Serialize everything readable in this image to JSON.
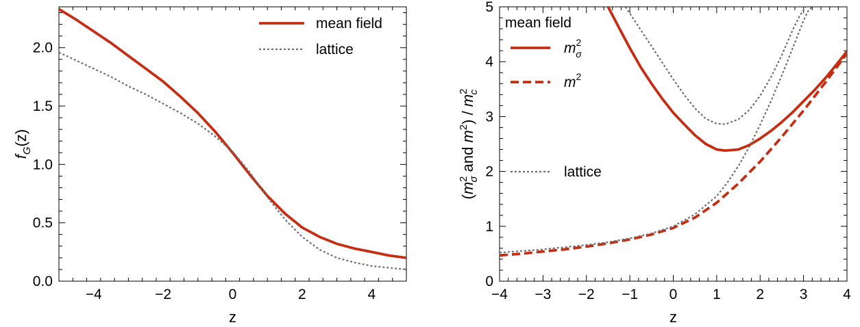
{
  "chart_data": [
    {
      "type": "line",
      "xlabel": "z",
      "ylabel": "f_G(z)",
      "xlim": [
        -5,
        5
      ],
      "ylim": [
        0,
        2.35
      ],
      "xticks": [
        -4,
        -2,
        0,
        2,
        4
      ],
      "xtick_labels": [
        "−4",
        "−2",
        "0",
        "2",
        "4"
      ],
      "yticks": [
        0.0,
        0.5,
        1.0,
        1.5,
        2.0
      ],
      "ytick_labels": [
        "0.0",
        "0.5",
        "1.0",
        "1.5",
        "2.0"
      ],
      "legend_position": "top-right",
      "legend": [
        {
          "label": "mean field",
          "style": "solid",
          "color": "#c62d12"
        },
        {
          "label": "lattice",
          "style": "dotted",
          "color": "#6e6e6e"
        }
      ],
      "series": [
        {
          "name": "mean field",
          "color": "#c62d12",
          "style": "solid",
          "x": [
            -5,
            -4.5,
            -4,
            -3.5,
            -3,
            -2.5,
            -2,
            -1.5,
            -1,
            -0.5,
            0,
            0.5,
            1,
            1.5,
            2,
            2.5,
            3,
            3.5,
            4,
            4.5,
            5
          ],
          "y": [
            2.33,
            2.24,
            2.14,
            2.04,
            1.93,
            1.82,
            1.71,
            1.58,
            1.44,
            1.28,
            1.1,
            0.91,
            0.73,
            0.58,
            0.46,
            0.38,
            0.32,
            0.28,
            0.25,
            0.22,
            0.2
          ]
        },
        {
          "name": "lattice",
          "color": "#6e6e6e",
          "style": "dotted",
          "x": [
            -5,
            -4.5,
            -4,
            -3.5,
            -3,
            -2.5,
            -2,
            -1.5,
            -1,
            -0.5,
            0,
            0.5,
            1,
            1.5,
            2,
            2.5,
            3,
            3.5,
            4,
            4.5,
            5
          ],
          "y": [
            1.96,
            1.89,
            1.82,
            1.75,
            1.67,
            1.6,
            1.52,
            1.44,
            1.35,
            1.24,
            1.11,
            0.93,
            0.72,
            0.53,
            0.38,
            0.27,
            0.2,
            0.16,
            0.13,
            0.115,
            0.1
          ]
        }
      ]
    },
    {
      "type": "line",
      "xlabel": "z",
      "ylabel": "(mσ² and m²) / mc²",
      "xlim": [
        -4,
        4
      ],
      "ylim": [
        0,
        5
      ],
      "xticks": [
        -4,
        -3,
        -2,
        -1,
        0,
        1,
        2,
        3,
        4
      ],
      "xtick_labels": [
        "−4",
        "−3",
        "−2",
        "−1",
        "0",
        "1",
        "2",
        "3",
        "4"
      ],
      "yticks": [
        0,
        1,
        2,
        3,
        4,
        5
      ],
      "ytick_labels": [
        "0",
        "1",
        "2",
        "3",
        "4",
        "5"
      ],
      "legend_position": "top-left",
      "legend_title": "mean field",
      "legend": [
        {
          "label": "mσ²",
          "base": "m",
          "sup": "2",
          "sub": "σ",
          "style": "solid",
          "color": "#c62d12"
        },
        {
          "label": "m²",
          "base": "m",
          "sup": "2",
          "sub": "",
          "style": "dashed",
          "color": "#c62d12"
        }
      ],
      "legend2": {
        "label": "lattice",
        "style": "dotted",
        "color": "#6e6e6e"
      },
      "series": [
        {
          "name": "mσ² (mean field)",
          "color": "#c62d12",
          "style": "solid",
          "x": [
            -1.5,
            -1.25,
            -1,
            -0.75,
            -0.5,
            -0.25,
            0,
            0.25,
            0.5,
            0.75,
            1,
            1.2,
            1.5,
            1.75,
            2,
            2.25,
            2.5,
            2.75,
            3,
            3.25,
            3.5,
            3.75,
            4
          ],
          "y": [
            5.0,
            4.62,
            4.25,
            3.9,
            3.6,
            3.32,
            3.07,
            2.86,
            2.66,
            2.5,
            2.4,
            2.38,
            2.4,
            2.48,
            2.6,
            2.74,
            2.9,
            3.08,
            3.28,
            3.48,
            3.7,
            3.94,
            4.19
          ]
        },
        {
          "name": "m² (mean field)",
          "color": "#c62d12",
          "style": "dashed",
          "x": [
            -4,
            -3.5,
            -3,
            -2.5,
            -2,
            -1.5,
            -1,
            -0.5,
            0,
            0.5,
            1,
            1.5,
            2,
            2.5,
            3,
            3.5,
            4
          ],
          "y": [
            0.47,
            0.5,
            0.54,
            0.58,
            0.63,
            0.69,
            0.76,
            0.85,
            0.97,
            1.16,
            1.43,
            1.78,
            2.18,
            2.63,
            3.11,
            3.62,
            4.15
          ]
        },
        {
          "name": "mσ² (lattice)",
          "color": "#6e6e6e",
          "style": "dotted",
          "x": [
            -1.1,
            -1,
            -0.75,
            -0.5,
            -0.25,
            0,
            0.25,
            0.5,
            0.75,
            1,
            1.2,
            1.5,
            1.75,
            2,
            2.25,
            2.5,
            2.75,
            2.9,
            3.05
          ],
          "y": [
            5.0,
            4.88,
            4.58,
            4.28,
            3.98,
            3.68,
            3.4,
            3.15,
            2.96,
            2.87,
            2.86,
            2.95,
            3.12,
            3.38,
            3.72,
            4.12,
            4.58,
            4.82,
            5.0
          ]
        },
        {
          "name": "m² (lattice)",
          "color": "#6e6e6e",
          "style": "dotted",
          "x": [
            -4,
            -3.5,
            -3,
            -2.5,
            -2,
            -1.5,
            -1,
            -0.5,
            0,
            0.5,
            1,
            1.25,
            1.5,
            1.75,
            2,
            2.25,
            2.5,
            2.75,
            3,
            3.1,
            3.2
          ],
          "y": [
            0.52,
            0.55,
            0.58,
            0.62,
            0.66,
            0.71,
            0.78,
            0.87,
            1.0,
            1.22,
            1.55,
            1.8,
            2.1,
            2.45,
            2.85,
            3.28,
            3.75,
            4.25,
            4.75,
            4.92,
            5.0
          ]
        }
      ]
    }
  ]
}
